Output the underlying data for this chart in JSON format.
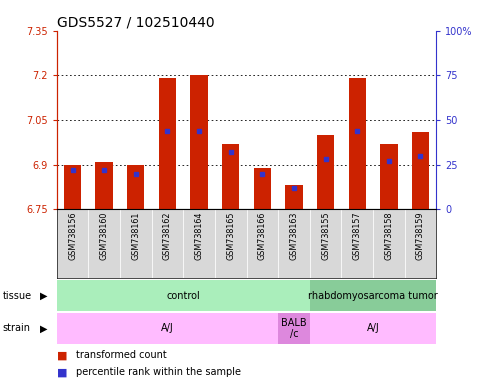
{
  "title": "GDS5527 / 102510440",
  "samples": [
    "GSM738156",
    "GSM738160",
    "GSM738161",
    "GSM738162",
    "GSM738164",
    "GSM738165",
    "GSM738166",
    "GSM738163",
    "GSM738155",
    "GSM738157",
    "GSM738158",
    "GSM738159"
  ],
  "red_values": [
    6.9,
    6.91,
    6.9,
    7.19,
    7.2,
    6.97,
    6.89,
    6.83,
    7.0,
    7.19,
    6.97,
    7.01
  ],
  "blue_values": [
    22,
    22,
    20,
    44,
    44,
    32,
    20,
    12,
    28,
    44,
    27,
    30
  ],
  "ymin": 6.75,
  "ymax": 7.35,
  "yticks": [
    6.75,
    6.9,
    7.05,
    7.2,
    7.35
  ],
  "ytick_labels": [
    "6.75",
    "6.9",
    "7.05",
    "7.2",
    "7.35"
  ],
  "y2min": 0,
  "y2max": 100,
  "y2ticks": [
    0,
    25,
    50,
    75,
    100
  ],
  "y2tick_labels": [
    "0",
    "25",
    "50",
    "75",
    "100%"
  ],
  "bar_color": "#cc2200",
  "dot_color": "#3333cc",
  "tissue_data": [
    {
      "label": "control",
      "start": 0,
      "end": 7,
      "color": "#aaeebb"
    },
    {
      "label": "rhabdomyosarcoma tumor",
      "start": 8,
      "end": 11,
      "color": "#88cc99"
    }
  ],
  "strain_data": [
    {
      "label": "A/J",
      "start": 0,
      "end": 6,
      "color": "#ffbbff"
    },
    {
      "label": "BALB\n/c",
      "start": 7,
      "end": 7,
      "color": "#dd88dd"
    },
    {
      "label": "A/J",
      "start": 8,
      "end": 11,
      "color": "#ffbbff"
    }
  ],
  "xlabel_color": "#cc2200",
  "y2label_color": "#3333cc",
  "tick_label_fontsize": 7,
  "sample_fontsize": 5.8,
  "title_fontsize": 10
}
